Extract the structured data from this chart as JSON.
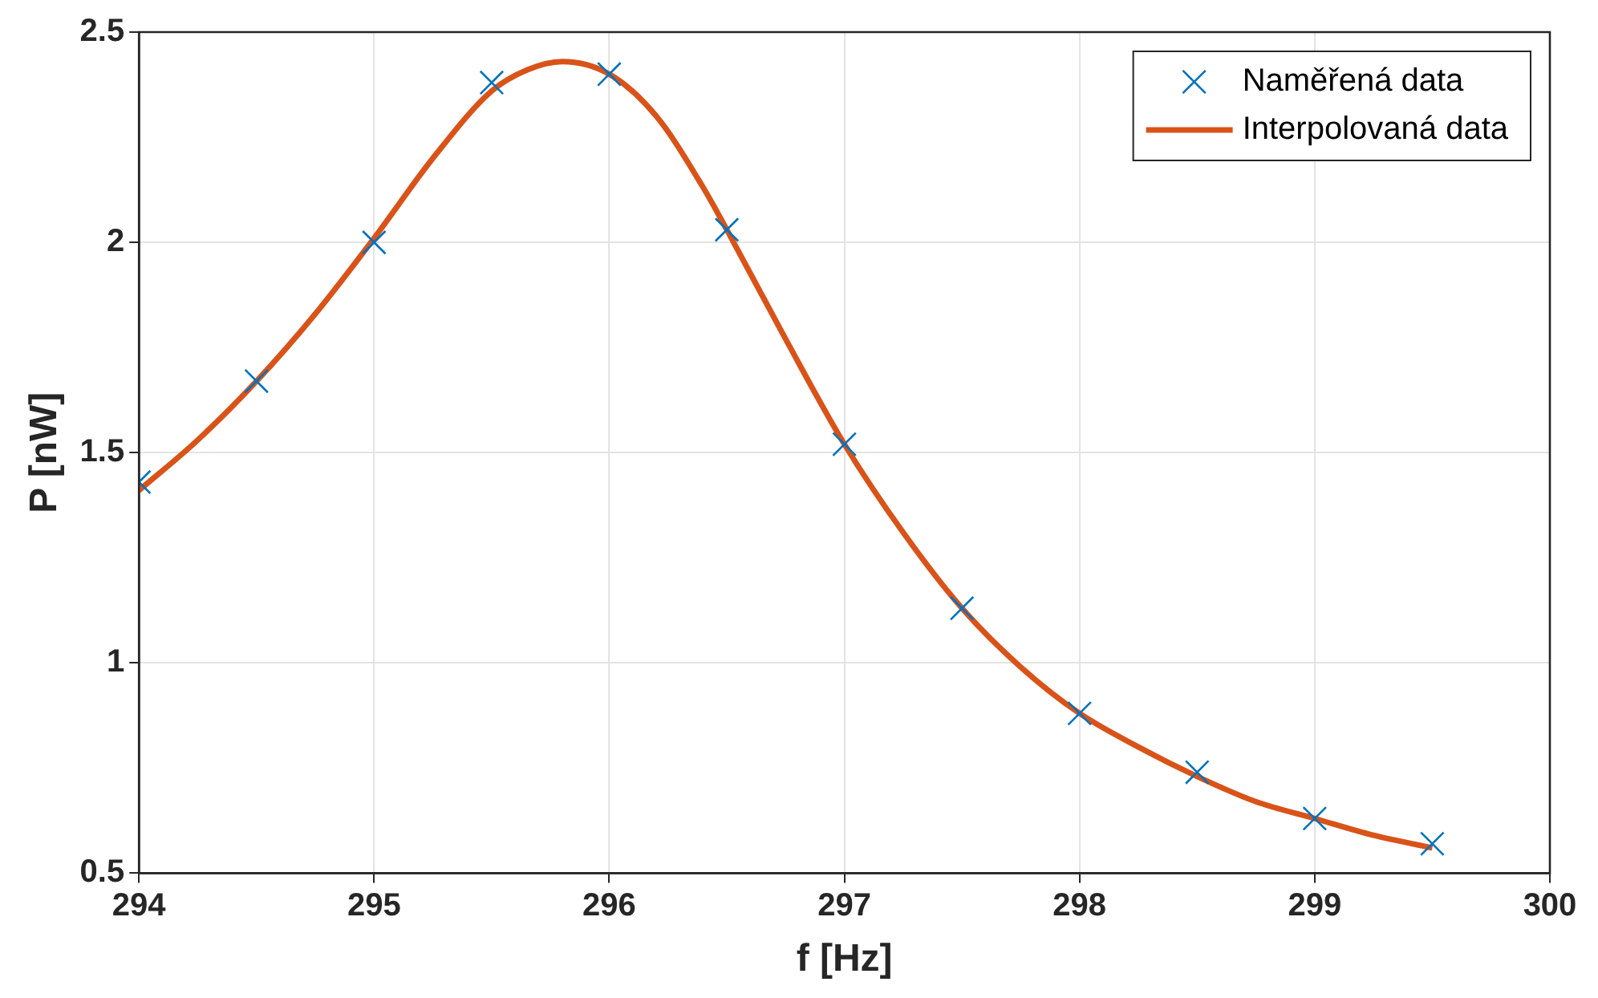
{
  "chart_data": {
    "type": "line",
    "xlabel": "f [Hz]",
    "ylabel": "P [nW]",
    "xlim": [
      294,
      300
    ],
    "xticks": [
      294,
      295,
      296,
      297,
      298,
      299,
      300
    ],
    "ylim": [
      0.5,
      2.5
    ],
    "yticks": [
      0.5,
      1,
      1.5,
      2,
      2.5
    ],
    "grid": true,
    "legend": "top right",
    "series": [
      {
        "name": "Naměřená data",
        "type": "scatter",
        "marker": "cross",
        "color": "#0072bd",
        "x": [
          294,
          294.5,
          295,
          295.5,
          296,
          296.5,
          297,
          297.5,
          298,
          298.5,
          299,
          299.5
        ],
        "values": [
          1.43,
          1.67,
          2.0,
          2.38,
          2.4,
          2.03,
          1.52,
          1.13,
          0.88,
          0.74,
          0.63,
          0.57
        ]
      },
      {
        "name": "Interpolovaná data",
        "type": "line",
        "marker": "none",
        "color": "#d95319",
        "x": [
          294,
          294.25,
          294.5,
          294.75,
          295,
          295.25,
          295.5,
          295.65,
          295.8,
          296,
          296.2,
          296.4,
          296.5,
          296.75,
          297,
          297.25,
          297.5,
          297.75,
          298,
          298.25,
          298.5,
          298.75,
          299,
          299.25,
          299.5
        ],
        "values": [
          1.41,
          1.53,
          1.67,
          1.83,
          2.01,
          2.2,
          2.36,
          2.41,
          2.43,
          2.4,
          2.3,
          2.13,
          2.03,
          1.77,
          1.52,
          1.31,
          1.13,
          0.99,
          0.88,
          0.8,
          0.73,
          0.67,
          0.63,
          0.59,
          0.56
        ]
      }
    ]
  }
}
